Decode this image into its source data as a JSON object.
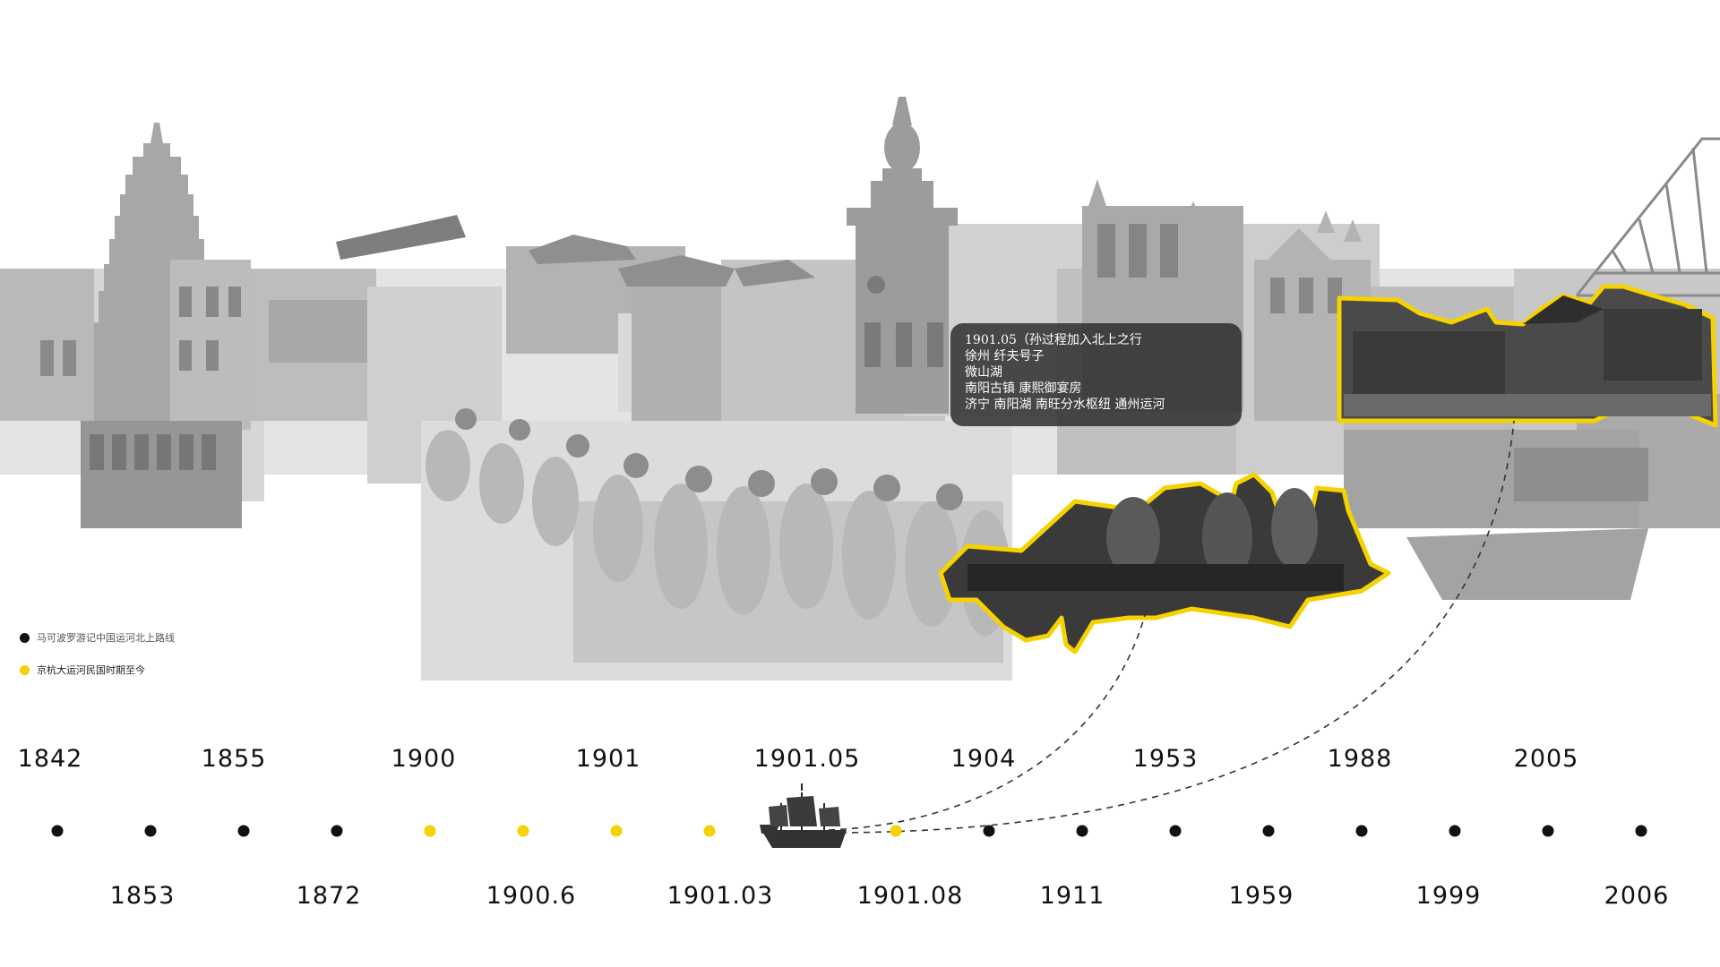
{
  "callout": {
    "lines": [
      "1901.05（孙过程加入北上之行",
      "徐州 纤夫号子",
      "微山湖",
      "南阳古镇 康熙御宴房",
      "济宁 南阳湖 南旺分水枢纽 通州运河"
    ]
  },
  "legend": [
    {
      "label": "马可波罗游记中国运河北上路线",
      "color": "#111111"
    },
    {
      "label": "京杭大运河民国时期至今",
      "color": "#f5d200"
    }
  ],
  "colors": {
    "highlight": "#f5d200",
    "dot": "#111111",
    "photo_tone": "#9a9a9a"
  },
  "timeline": {
    "top_years": [
      "1842",
      "1855",
      "1900",
      "1901",
      "1901.05",
      "1904",
      "1953",
      "1988",
      "2005"
    ],
    "bottom_years": [
      "1853",
      "1872",
      "1900.6",
      "1901.03",
      "1901.08",
      "1911",
      "1959",
      "1999",
      "2006"
    ],
    "dot_colors": [
      "black",
      "black",
      "black",
      "black",
      "yellow",
      "yellow",
      "yellow",
      "yellow",
      "ship",
      "yellow",
      "black",
      "black",
      "black",
      "black",
      "black",
      "black",
      "black",
      "black"
    ]
  },
  "icons": {
    "ship": "junk-ship-icon"
  }
}
